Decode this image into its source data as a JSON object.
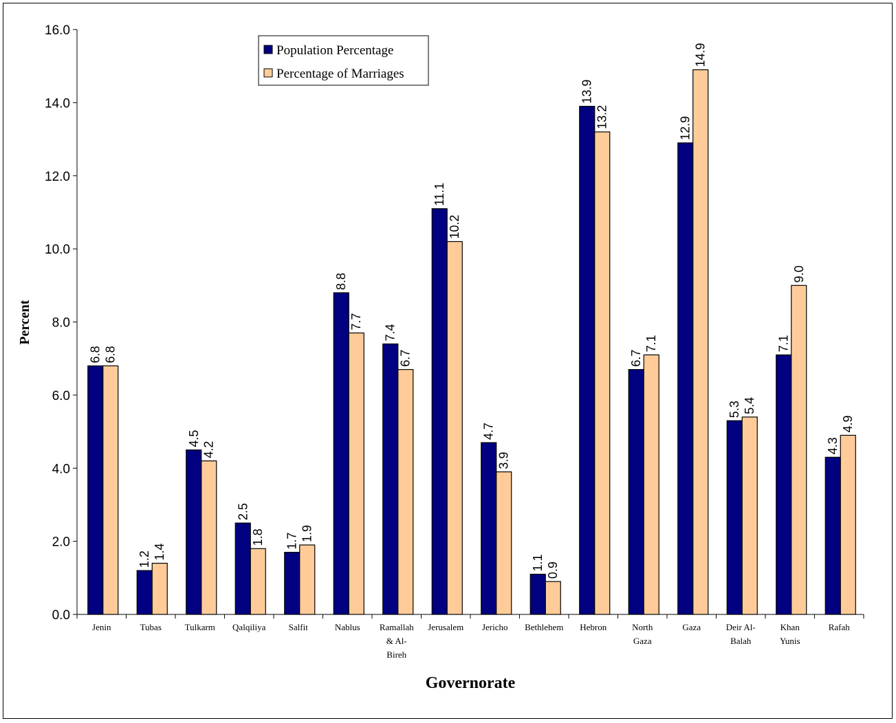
{
  "chart_data": {
    "type": "bar",
    "xlabel": "Governorate",
    "ylabel": "Percent",
    "ylim": [
      0,
      16
    ],
    "ytick_step": 2,
    "ytick_labels": [
      "0.0",
      "2.0",
      "4.0",
      "6.0",
      "8.0",
      "10.0",
      "12.0",
      "14.0",
      "16.0"
    ],
    "grid": false,
    "legend_position": "top-center",
    "categories": [
      [
        "Jenin"
      ],
      [
        "Tubas"
      ],
      [
        "Tulkarm"
      ],
      [
        "Qalqiliya"
      ],
      [
        "Salfit"
      ],
      [
        "Nablus"
      ],
      [
        "Ramallah",
        "& Al-",
        "Bireh"
      ],
      [
        "Jerusalem"
      ],
      [
        "Jericho"
      ],
      [
        "Bethlehem"
      ],
      [
        "Hebron"
      ],
      [
        "North",
        "Gaza"
      ],
      [
        "Gaza"
      ],
      [
        "Deir Al-",
        "Balah"
      ],
      [
        "Khan",
        "Yunis"
      ],
      [
        "Rafah"
      ]
    ],
    "series": [
      {
        "name": "Population Percentage",
        "color": "#000080",
        "values": [
          6.8,
          1.2,
          4.5,
          2.5,
          1.7,
          8.8,
          7.4,
          11.1,
          4.7,
          1.1,
          13.9,
          6.7,
          12.9,
          5.3,
          7.1,
          4.3
        ],
        "labels": [
          "6.8",
          "1.2",
          "4.5",
          "2.5",
          "1.7",
          "8.8",
          "7.4",
          "11.1",
          "4.7",
          "1.1",
          "13.9",
          "6.7",
          "12.9",
          "5.3",
          "7.1",
          "4.3"
        ]
      },
      {
        "name": "Percentage of Marriages",
        "color": "#FFCC99",
        "values": [
          6.8,
          1.4,
          4.2,
          1.8,
          1.9,
          7.7,
          6.7,
          10.2,
          3.9,
          0.9,
          13.2,
          7.1,
          14.9,
          5.4,
          9.0,
          4.9
        ],
        "labels": [
          "6.8",
          "1.4",
          "4.2",
          "1.8",
          "1.9",
          "7.7",
          "6.7",
          "10.2",
          "3.9",
          "0.9",
          "13.2",
          "7.1",
          "14.9",
          "5.4",
          "9.0",
          "4.9"
        ]
      }
    ]
  }
}
